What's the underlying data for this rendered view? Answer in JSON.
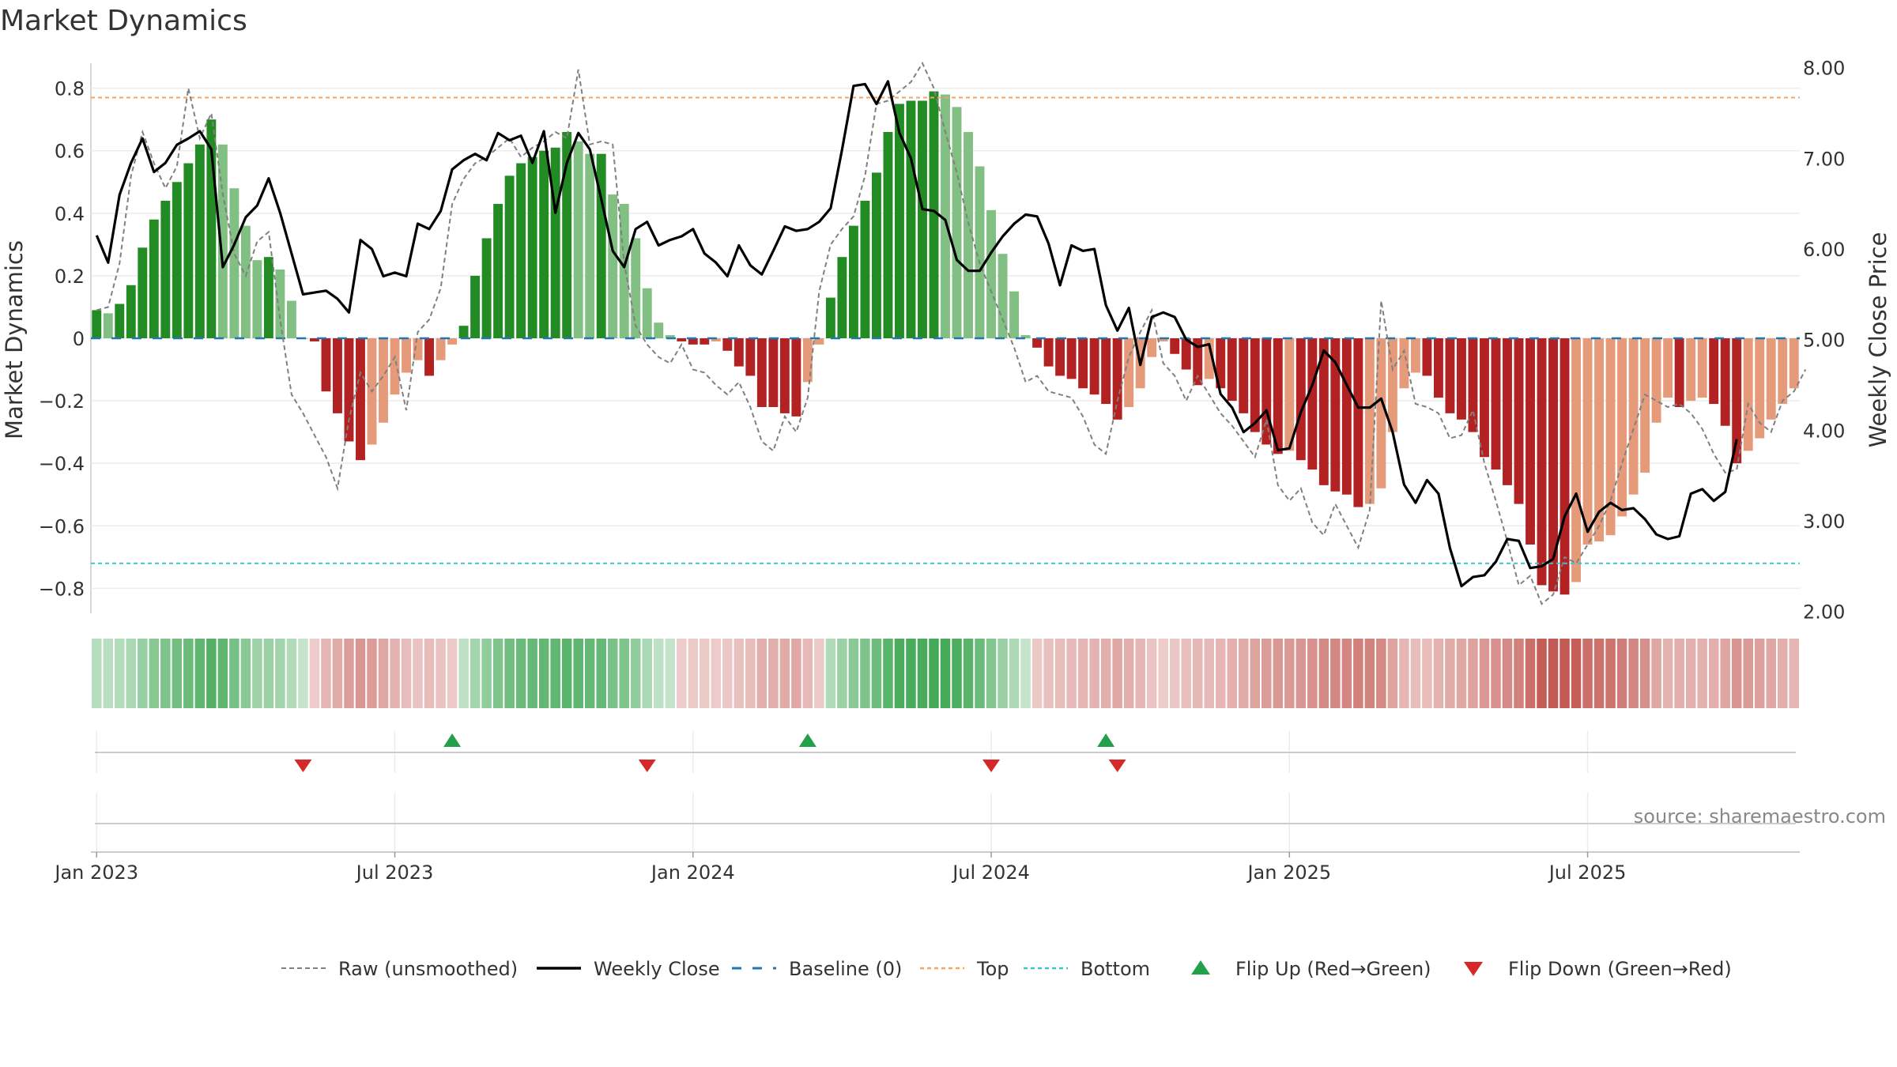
{
  "title": "Market Dynamics",
  "source": "source: sharemaestro.com",
  "colors": {
    "strong_green": "#238b23",
    "light_green": "#82bf82",
    "strong_red": "#b22222",
    "light_red": "#e59a7a",
    "raw": "#808080",
    "close": "#000000",
    "baseline": "#1f77b4",
    "top": "#f4a460",
    "bottom": "#40c0d0",
    "flip_up": "#22a04a",
    "flip_down": "#d62828"
  },
  "chart_data": {
    "type": "bar",
    "title": "Market Dynamics",
    "ylabel": "Market Dynamics",
    "y2label": "Weekly Close Price",
    "ylim": [
      -0.88,
      0.88
    ],
    "y2lim": [
      1.98,
      8.05
    ],
    "yticks": [
      "0.8",
      "0.6",
      "0.4",
      "0.2",
      "0",
      "−0.2",
      "−0.4",
      "−0.6",
      "−0.8"
    ],
    "yticks_values": [
      0.8,
      0.6,
      0.4,
      0.2,
      0,
      -0.2,
      -0.4,
      -0.6,
      -0.8
    ],
    "y2ticks": [
      "8.00",
      "7.00",
      "6.00",
      "5.00",
      "4.00",
      "3.00",
      "2.00"
    ],
    "y2ticks_values": [
      8,
      7,
      6,
      5,
      4,
      3,
      2
    ],
    "xticks": [
      "Jan 2023",
      "Jul 2023",
      "Jan 2024",
      "Jul 2024",
      "Jan 2025",
      "Jul 2025"
    ],
    "xticks_weeks": [
      1,
      27,
      53,
      79,
      105,
      131
    ],
    "top_level": 0.77,
    "bottom_level": -0.72,
    "bars": [
      0.09,
      0.08,
      0.11,
      0.17,
      0.29,
      0.38,
      0.44,
      0.5,
      0.56,
      0.62,
      0.7,
      0.62,
      0.48,
      0.36,
      0.25,
      0.26,
      0.22,
      0.12,
      0,
      -0.01,
      -0.17,
      -0.24,
      -0.33,
      -0.39,
      -0.34,
      -0.27,
      -0.18,
      -0.11,
      -0.07,
      -0.12,
      -0.07,
      -0.02,
      0.04,
      0.2,
      0.32,
      0.43,
      0.52,
      0.56,
      0.58,
      0.6,
      0.61,
      0.66,
      0.63,
      0.59,
      0.59,
      0.46,
      0.43,
      0.32,
      0.16,
      0.05,
      0.01,
      -0.01,
      -0.02,
      -0.02,
      -0.01,
      -0.04,
      -0.09,
      -0.12,
      -0.22,
      -0.22,
      -0.24,
      -0.25,
      -0.14,
      -0.02,
      0.13,
      0.26,
      0.36,
      0.44,
      0.53,
      0.66,
      0.75,
      0.76,
      0.76,
      0.79,
      0.78,
      0.74,
      0.66,
      0.55,
      0.41,
      0.27,
      0.15,
      0.01,
      -0.03,
      -0.09,
      -0.12,
      -0.13,
      -0.16,
      -0.18,
      -0.21,
      -0.26,
      -0.22,
      -0.16,
      -0.06,
      -0.01,
      -0.05,
      -0.1,
      -0.15,
      -0.13,
      -0.16,
      -0.2,
      -0.24,
      -0.3,
      -0.34,
      -0.37,
      -0.36,
      -0.39,
      -0.42,
      -0.47,
      -0.49,
      -0.5,
      -0.54,
      -0.53,
      -0.48,
      -0.3,
      -0.16,
      -0.11,
      -0.12,
      -0.19,
      -0.24,
      -0.26,
      -0.3,
      -0.38,
      -0.42,
      -0.47,
      -0.53,
      -0.66,
      -0.79,
      -0.81,
      -0.82,
      -0.78,
      -0.66,
      -0.65,
      -0.63,
      -0.57,
      -0.5,
      -0.43,
      -0.27,
      -0.19,
      -0.22,
      -0.2,
      -0.19,
      -0.21,
      -0.28,
      -0.4,
      -0.36,
      -0.32,
      -0.26,
      -0.21,
      -0.16
    ],
    "series": [
      {
        "name": "Raw (unsmoothed)",
        "values": [
          0.09,
          0.1,
          0.24,
          0.52,
          0.66,
          0.56,
          0.48,
          0.55,
          0.8,
          0.64,
          0.72,
          0.46,
          0.27,
          0.2,
          0.31,
          0.34,
          0.06,
          -0.18,
          -0.24,
          -0.31,
          -0.38,
          -0.48,
          -0.26,
          -0.11,
          -0.17,
          -0.12,
          -0.06,
          -0.23,
          0.02,
          0.06,
          0.16,
          0.43,
          0.51,
          0.56,
          0.58,
          0.61,
          0.64,
          0.58,
          0.61,
          0.63,
          0.66,
          0.64,
          0.86,
          0.62,
          0.63,
          0.62,
          0.24,
          0.04,
          -0.02,
          -0.06,
          -0.08,
          -0.02,
          -0.1,
          -0.11,
          -0.15,
          -0.18,
          -0.14,
          -0.22,
          -0.33,
          -0.36,
          -0.25,
          -0.3,
          -0.19,
          0.15,
          0.3,
          0.35,
          0.39,
          0.52,
          0.75,
          0.76,
          0.79,
          0.82,
          0.88,
          0.8,
          0.66,
          0.53,
          0.37,
          0.24,
          0.15,
          0.06,
          -0.03,
          -0.14,
          -0.12,
          -0.17,
          -0.18,
          -0.19,
          -0.25,
          -0.34,
          -0.37,
          -0.2,
          -0.06,
          0.02,
          0.09,
          -0.08,
          -0.12,
          -0.2,
          -0.12,
          -0.18,
          -0.24,
          -0.28,
          -0.33,
          -0.38,
          -0.26,
          -0.47,
          -0.52,
          -0.48,
          -0.59,
          -0.63,
          -0.53,
          -0.6,
          -0.67,
          -0.55,
          0.12,
          -0.1,
          -0.04,
          -0.21,
          -0.22,
          -0.24,
          -0.32,
          -0.31,
          -0.23,
          -0.4,
          -0.52,
          -0.65,
          -0.79,
          -0.76,
          -0.85,
          -0.82,
          -0.7,
          -0.72,
          -0.66,
          -0.6,
          -0.52,
          -0.4,
          -0.29,
          -0.18,
          -0.2,
          -0.22,
          -0.21,
          -0.24,
          -0.29,
          -0.37,
          -0.43,
          -0.42,
          -0.21,
          -0.27,
          -0.3,
          -0.2,
          -0.17,
          -0.1
        ]
      },
      {
        "name": "Weekly Close",
        "values": [
          6.15,
          5.85,
          6.6,
          6.95,
          7.22,
          6.85,
          6.95,
          7.15,
          7.22,
          7.3,
          7.1,
          5.8,
          6.05,
          6.35,
          6.48,
          6.78,
          6.4,
          5.95,
          5.5,
          5.52,
          5.54,
          5.45,
          5.3,
          6.1,
          6.0,
          5.7,
          5.74,
          5.7,
          6.28,
          6.22,
          6.42,
          6.88,
          6.98,
          7.05,
          6.98,
          7.28,
          7.2,
          7.25,
          6.95,
          7.3,
          6.4,
          6.95,
          7.28,
          7.1,
          6.55,
          5.98,
          5.8,
          6.22,
          6.3,
          6.04,
          6.1,
          6.14,
          6.22,
          5.95,
          5.85,
          5.7,
          6.04,
          5.82,
          5.72,
          5.98,
          6.25,
          6.2,
          6.22,
          6.3,
          6.45,
          7.1,
          7.8,
          7.82,
          7.6,
          7.85,
          7.28,
          7.0,
          6.44,
          6.42,
          6.32,
          5.88,
          5.76,
          5.76,
          5.96,
          6.14,
          6.28,
          6.38,
          6.36,
          6.06,
          5.6,
          6.04,
          5.98,
          6.0,
          5.38,
          5.1,
          5.35,
          4.72,
          5.25,
          5.3,
          5.25,
          5.0,
          4.92,
          4.95,
          4.4,
          4.25,
          3.98,
          4.08,
          4.22,
          3.78,
          3.8,
          4.2,
          4.5,
          4.88,
          4.75,
          4.5,
          4.25,
          4.25,
          4.35,
          3.98,
          3.4,
          3.2,
          3.45,
          3.3,
          2.7,
          2.28,
          2.38,
          2.4,
          2.55,
          2.8,
          2.78,
          2.48,
          2.5,
          2.58,
          3.05,
          3.3,
          2.88,
          3.1,
          3.2,
          3.12,
          3.14,
          3.02,
          2.85,
          2.8,
          2.83,
          3.3,
          3.35,
          3.22,
          3.32,
          3.9
        ]
      },
      {
        "name": "Baseline (0)"
      },
      {
        "name": "Top"
      },
      {
        "name": "Bottom"
      },
      {
        "name": "Flip Up (Red→Green)",
        "weeks": [
          31,
          62,
          88
        ]
      },
      {
        "name": "Flip Down (Green→Red)",
        "weeks": [
          18,
          48,
          78,
          89
        ]
      }
    ],
    "legend_position": "bottom"
  }
}
